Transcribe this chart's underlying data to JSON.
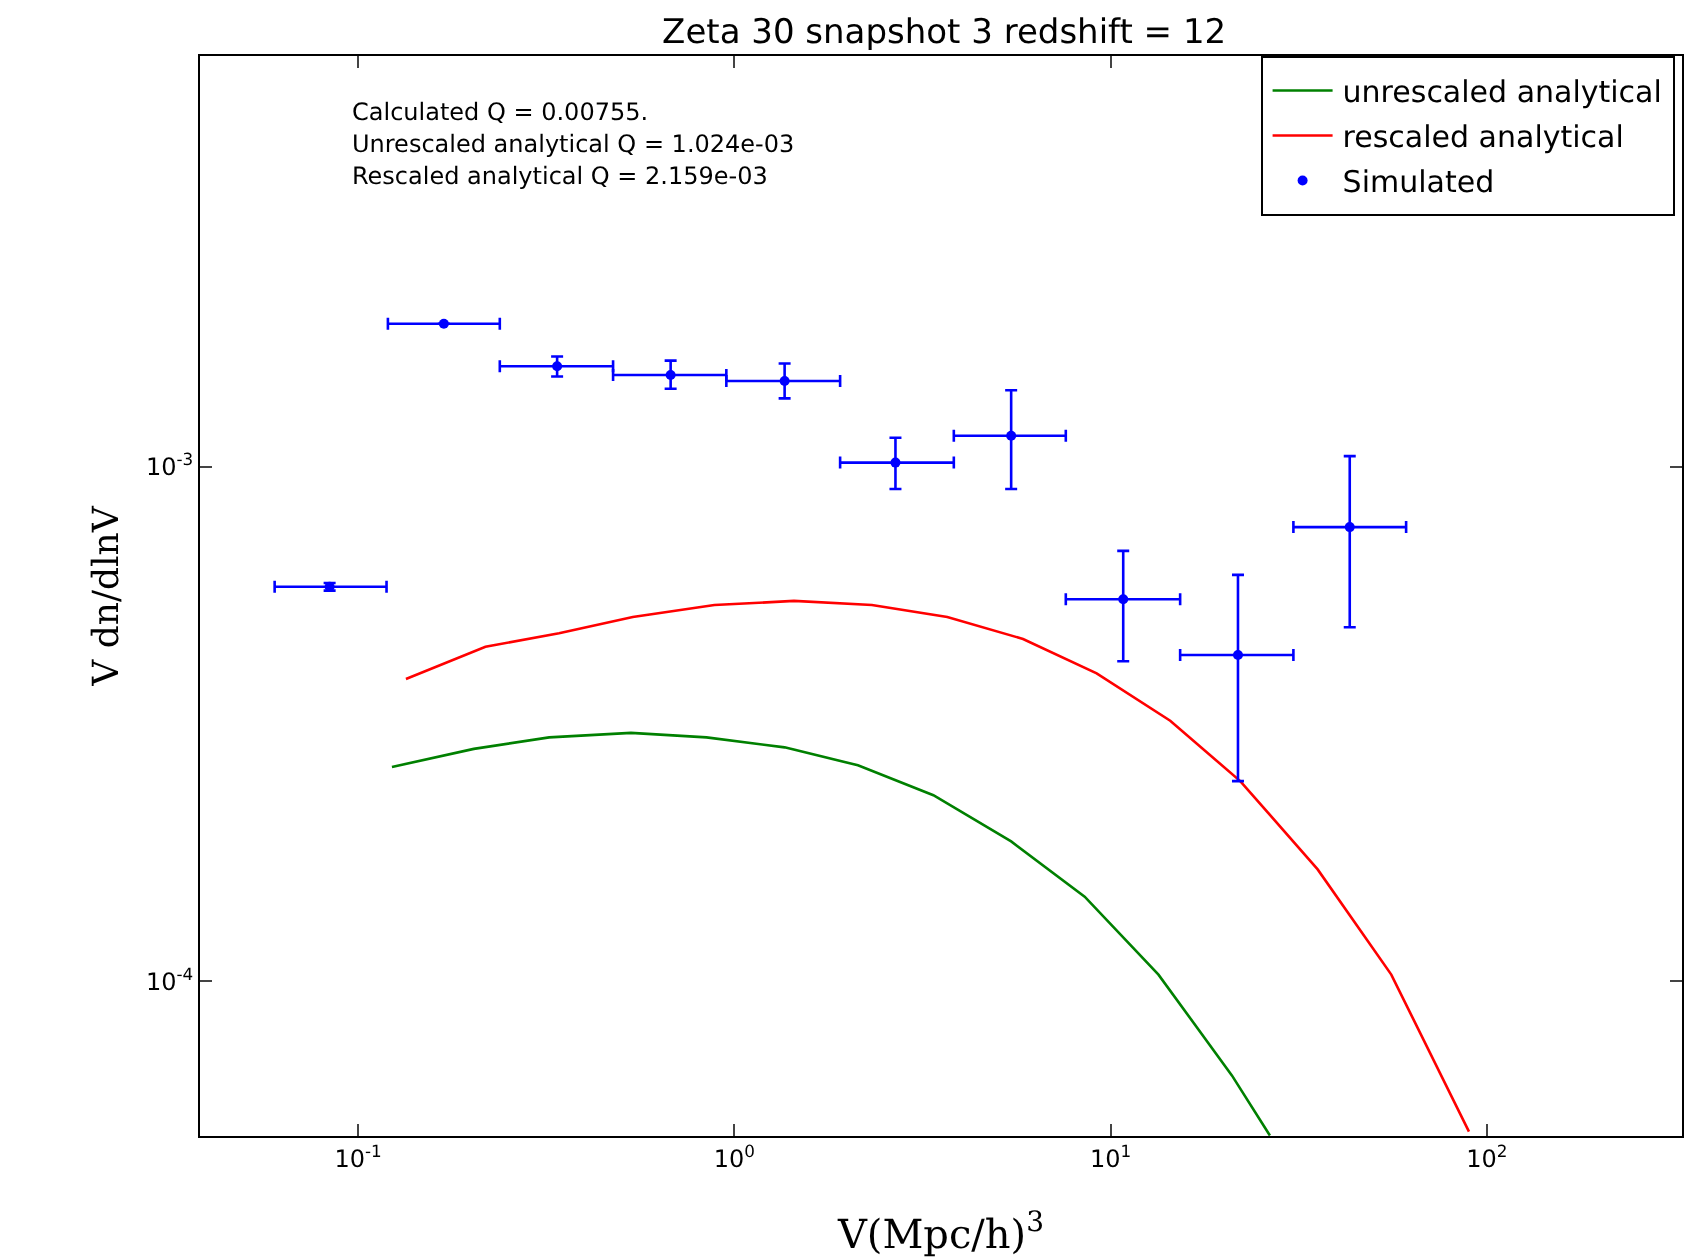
{
  "chart_data": {
    "type": "scatter",
    "title": "Zeta 30 snapshot 3 redshift = 12",
    "xlabel": "V(Mpc/h)$^{3}$",
    "ylabel": "V dn/dlnV",
    "annotations": [
      "Calculated Q = 0.00755.",
      "Unrescaled analytical Q = 1.024e-03",
      "Rescaled analytical Q = 2.159e-03"
    ],
    "log": "xy",
    "grid": false,
    "legend": "top right",
    "xlim": [
      0.038,
      330
    ],
    "ylim": [
      5e-05,
      0.0063
    ],
    "xticks": [
      {
        "value": 0.1,
        "label": "10$^{-1}$"
      },
      {
        "value": 1,
        "label": "10$^{0}$"
      },
      {
        "value": 10,
        "label": "10$^{1}$"
      },
      {
        "value": 100,
        "label": "10$^{2}$"
      }
    ],
    "yticks": [
      {
        "value": 0.0001,
        "label": "10$^{-4}$"
      },
      {
        "value": 0.001,
        "label": "10$^{-3}$"
      }
    ],
    "series": [
      {
        "name": "unrescaled analytical",
        "type": "line",
        "marker": "none",
        "line_style": "solid",
        "color": "#008000",
        "x": [
          0.123,
          0.203,
          0.322,
          0.531,
          0.843,
          1.36,
          2.13,
          3.38,
          5.44,
          8.53,
          13.4,
          21.0,
          26.5
        ],
        "values": [
          0.000261,
          0.000283,
          0.000298,
          0.000304,
          0.000298,
          0.000285,
          0.000263,
          0.00023,
          0.000187,
          0.000146,
          0.000103,
          6.56e-05,
          5.01e-05
        ]
      },
      {
        "name": "rescaled analytical",
        "type": "line",
        "marker": "none",
        "line_style": "solid",
        "color": "#ff0000",
        "x": [
          0.134,
          0.218,
          0.342,
          0.537,
          0.885,
          1.44,
          2.32,
          3.68,
          5.85,
          9.18,
          14.4,
          22.1,
          35.5,
          55.7,
          89.6
        ],
        "values": [
          0.000387,
          0.000447,
          0.000475,
          0.000511,
          0.000539,
          0.000549,
          0.000539,
          0.000511,
          0.000463,
          0.000397,
          0.000321,
          0.000245,
          0.000165,
          0.000103,
          5.1e-05
        ]
      },
      {
        "name": "Simulated",
        "marker": "circle",
        "color": "#0000ff",
        "x": [
          0.084,
          0.169,
          0.338,
          0.677,
          1.36,
          2.68,
          5.44,
          10.8,
          21.8,
          43.2
        ],
        "values": [
          0.000585,
          0.0019,
          0.00157,
          0.00151,
          0.00147,
          0.00102,
          0.00115,
          0.000553,
          0.000431,
          0.000764
        ],
        "errors": [
          [
            0.000575,
            0.000595
          ],
          null,
          [
            0.0015,
            0.00164
          ],
          [
            0.00142,
            0.00161
          ],
          [
            0.00136,
            0.00159
          ],
          [
            0.000906,
            0.00114
          ],
          [
            0.000906,
            0.00141
          ],
          [
            0.000419,
            0.000687
          ],
          [
            0.000245,
            0.000617
          ],
          [
            0.000488,
            0.00105
          ]
        ],
        "xerrors": [
          [
            0.06,
            0.119
          ],
          [
            0.12,
            0.238
          ],
          [
            0.238,
            0.476
          ],
          [
            0.476,
            0.952
          ],
          [
            0.952,
            1.91
          ],
          [
            1.91,
            3.83
          ],
          [
            3.83,
            7.6
          ],
          [
            7.6,
            15.3
          ],
          [
            15.3,
            30.6
          ],
          [
            30.6,
            61
          ]
        ]
      }
    ]
  }
}
